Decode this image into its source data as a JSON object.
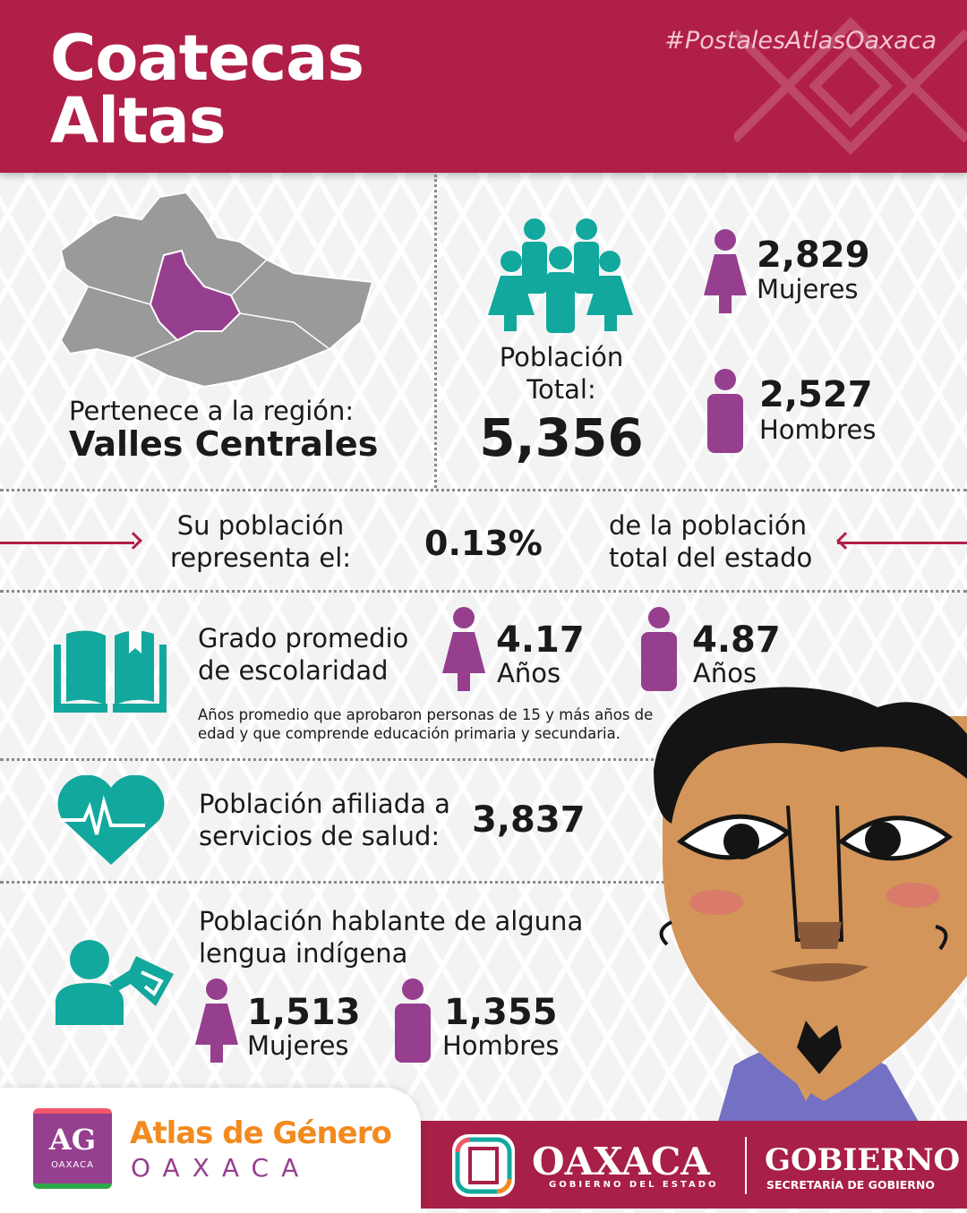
{
  "header": {
    "title_line1": "Coatecas",
    "title_line2": "Altas",
    "hashtag": "#PostalesAtlasOaxaca"
  },
  "region": {
    "label": "Pertenece a la región:",
    "name": "Valles Centrales"
  },
  "population": {
    "label_line1": "Población",
    "label_line2": "Total:",
    "total": "5,356",
    "women": {
      "value": "2,829",
      "label": "Mujeres"
    },
    "men": {
      "value": "2,527",
      "label": "Hombres"
    }
  },
  "share": {
    "left_line1": "Su población",
    "left_line2": "representa el:",
    "percent": "0.13%",
    "right_line1": "de la población",
    "right_line2": "total del estado"
  },
  "schooling": {
    "title_line1": "Grado promedio",
    "title_line2": "de escolaridad",
    "women": {
      "value": "4.17",
      "unit": "Años"
    },
    "men": {
      "value": "4.87",
      "unit": "Años"
    },
    "note_line1": "Años promedio que aprobaron personas de 15 y más años de",
    "note_line2": "edad y que comprende educación primaria y secundaria."
  },
  "health": {
    "label_line1": "Población afiliada a",
    "label_line2": "servicios de salud:",
    "value": "3,837"
  },
  "language": {
    "title_line1": "Población hablante de alguna",
    "title_line2": "lengua indígena",
    "women": {
      "value": "1,513",
      "label": "Mujeres"
    },
    "men": {
      "value": "1,355",
      "label": "Hombres"
    }
  },
  "footer": {
    "atlas_logo_letters": "AG",
    "atlas_logo_sub": "OAXACA",
    "atlas_title": "Atlas de Género",
    "atlas_sub": "OAXACA",
    "oaxaca_title": "OAXACA",
    "oaxaca_sub": "GOBIERNO DEL ESTADO",
    "gob_title": "GOBIERNO",
    "gob_sub": "SECRETARÍA DE GOBIERNO"
  },
  "colors": {
    "crimson": "#b01f47",
    "teal": "#12a89d",
    "purple": "#963f8f",
    "orange": "#f28a1e"
  }
}
